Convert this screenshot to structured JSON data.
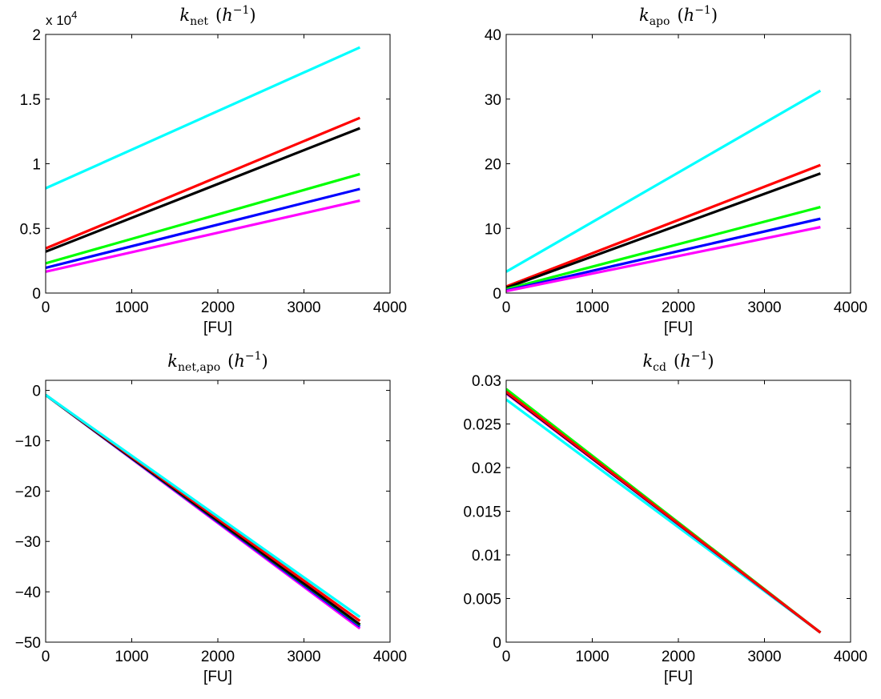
{
  "chart_data": [
    {
      "type": "line",
      "title": {
        "k": "k",
        "sub": "net",
        "unit_open": "(",
        "unit_h": "h",
        "unit_exp": "−1",
        "unit_close": ")"
      },
      "xlabel": "[FU]",
      "ylabel": "",
      "xlim": [
        0,
        4000
      ],
      "ylim": [
        0,
        20000
      ],
      "xticks": [
        "0",
        "1000",
        "2000",
        "3000",
        "4000"
      ],
      "yticks": [
        "0",
        "0.5",
        "1",
        "1.5",
        "2"
      ],
      "ytick_values": [
        0,
        5000,
        10000,
        15000,
        20000
      ],
      "multiplier": {
        "base": "x 10",
        "exp": "4"
      },
      "grid": false,
      "series": [
        {
          "color": "#00ffff",
          "x": [
            0,
            3650
          ],
          "y": [
            8100,
            19000
          ]
        },
        {
          "color": "#ff0000",
          "x": [
            0,
            3650
          ],
          "y": [
            3450,
            13550
          ]
        },
        {
          "color": "#000000",
          "x": [
            0,
            3650
          ],
          "y": [
            3200,
            12750
          ]
        },
        {
          "color": "#00ff00",
          "x": [
            0,
            3650
          ],
          "y": [
            2300,
            9200
          ]
        },
        {
          "color": "#0000ff",
          "x": [
            0,
            3650
          ],
          "y": [
            1950,
            8050
          ]
        },
        {
          "color": "#ff00ff",
          "x": [
            0,
            3650
          ],
          "y": [
            1650,
            7150
          ]
        }
      ]
    },
    {
      "type": "line",
      "title": {
        "k": "k",
        "sub": "apo",
        "unit_open": "(",
        "unit_h": "h",
        "unit_exp": "−1",
        "unit_close": ")"
      },
      "xlabel": "[FU]",
      "ylabel": "",
      "xlim": [
        0,
        4000
      ],
      "ylim": [
        0,
        40
      ],
      "xticks": [
        "0",
        "1000",
        "2000",
        "3000",
        "4000"
      ],
      "yticks": [
        "0",
        "10",
        "20",
        "30",
        "40"
      ],
      "ytick_values": [
        0,
        10,
        20,
        30,
        40
      ],
      "grid": false,
      "series": [
        {
          "color": "#00ffff",
          "x": [
            0,
            3650
          ],
          "y": [
            3.3,
            31.3
          ]
        },
        {
          "color": "#ff0000",
          "x": [
            0,
            3650
          ],
          "y": [
            1.0,
            19.8
          ]
        },
        {
          "color": "#000000",
          "x": [
            0,
            3650
          ],
          "y": [
            0.8,
            18.5
          ]
        },
        {
          "color": "#00ff00",
          "x": [
            0,
            3650
          ],
          "y": [
            0.6,
            13.3
          ]
        },
        {
          "color": "#0000ff",
          "x": [
            0,
            3650
          ],
          "y": [
            0.4,
            11.5
          ]
        },
        {
          "color": "#ff00ff",
          "x": [
            0,
            3650
          ],
          "y": [
            0.3,
            10.2
          ]
        }
      ]
    },
    {
      "type": "line",
      "title": {
        "k": "k",
        "sub": "net,apo",
        "unit_open": "(",
        "unit_h": "h",
        "unit_exp": "−1",
        "unit_close": ")"
      },
      "xlabel": "[FU]",
      "ylabel": "",
      "xlim": [
        0,
        4000
      ],
      "ylim": [
        -50,
        2
      ],
      "xticks": [
        "0",
        "1000",
        "2000",
        "3000",
        "4000"
      ],
      "yticks": [
        "−50",
        "−40",
        "−30",
        "−20",
        "−10",
        "0"
      ],
      "ytick_values": [
        -50,
        -40,
        -30,
        -20,
        -10,
        0
      ],
      "grid": false,
      "series": [
        {
          "color": "#ff00ff",
          "x": [
            0,
            3650
          ],
          "y": [
            -0.9,
            -47.3
          ]
        },
        {
          "color": "#0000ff",
          "x": [
            0,
            3650
          ],
          "y": [
            -0.9,
            -46.9
          ]
        },
        {
          "color": "#00ff00",
          "x": [
            0,
            3650
          ],
          "y": [
            -0.9,
            -46.6
          ]
        },
        {
          "color": "#000000",
          "x": [
            0,
            3650
          ],
          "y": [
            -0.9,
            -46.5
          ]
        },
        {
          "color": "#ff0000",
          "x": [
            0,
            3650
          ],
          "y": [
            -0.9,
            -45.8
          ]
        },
        {
          "color": "#00ffff",
          "x": [
            0,
            3650
          ],
          "y": [
            -0.9,
            -45.0
          ]
        }
      ]
    },
    {
      "type": "line",
      "title": {
        "k": "k",
        "sub": "cd",
        "unit_open": "(",
        "unit_h": "h",
        "unit_exp": "−1",
        "unit_close": ")"
      },
      "xlabel": "[FU]",
      "ylabel": "",
      "xlim": [
        0,
        4000
      ],
      "ylim": [
        0,
        0.03
      ],
      "xticks": [
        "0",
        "1000",
        "2000",
        "3000",
        "4000"
      ],
      "yticks": [
        "0",
        "0.005",
        "0.01",
        "0.015",
        "0.02",
        "0.025",
        "0.03"
      ],
      "ytick_values": [
        0,
        0.005,
        0.01,
        0.015,
        0.02,
        0.025,
        0.03
      ],
      "grid": false,
      "series": [
        {
          "color": "#00ffff",
          "x": [
            0,
            3650
          ],
          "y": [
            0.0278,
            0.0011
          ]
        },
        {
          "color": "#ff00ff",
          "x": [
            0,
            3650
          ],
          "y": [
            0.0285,
            0.0011
          ]
        },
        {
          "color": "#0000ff",
          "x": [
            0,
            3650
          ],
          "y": [
            0.0286,
            0.0011
          ]
        },
        {
          "color": "#000000",
          "x": [
            0,
            3650
          ],
          "y": [
            0.0286,
            0.0011
          ]
        },
        {
          "color": "#00ff00",
          "x": [
            0,
            3650
          ],
          "y": [
            0.029,
            0.0011
          ]
        },
        {
          "color": "#ff0000",
          "x": [
            0,
            3650
          ],
          "y": [
            0.0287,
            0.0011
          ]
        }
      ]
    }
  ]
}
